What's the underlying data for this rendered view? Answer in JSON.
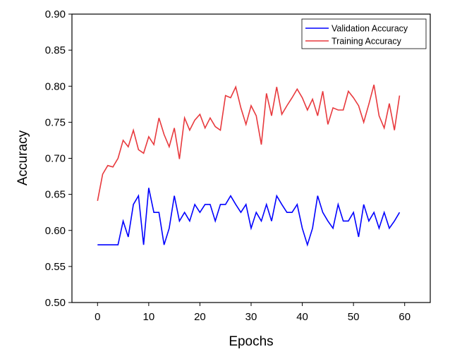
{
  "chart_data": {
    "type": "line",
    "xlabel": "Epochs",
    "ylabel": "Accuracy",
    "xlim": [
      -5,
      65
    ],
    "ylim": [
      0.5,
      0.9
    ],
    "xticks": [
      0,
      10,
      20,
      30,
      40,
      50,
      60
    ],
    "yticks": [
      0.5,
      0.55,
      0.6,
      0.65,
      0.7,
      0.75,
      0.8,
      0.85,
      0.9
    ],
    "grid": false,
    "legend": "top-right",
    "series": [
      {
        "name": "Validation Accuracy",
        "color": "#0000ff",
        "x": [
          0,
          1,
          2,
          3,
          4,
          5,
          6,
          7,
          8,
          9,
          10,
          11,
          12,
          13,
          14,
          15,
          16,
          17,
          18,
          19,
          20,
          21,
          22,
          23,
          24,
          25,
          26,
          27,
          28,
          29,
          30,
          31,
          32,
          33,
          34,
          35,
          36,
          37,
          38,
          39,
          40,
          41,
          42,
          43,
          44,
          45,
          46,
          47,
          48,
          49,
          50,
          51,
          52,
          53,
          54,
          55,
          56,
          57,
          58,
          59
        ],
        "values": [
          0.58,
          0.58,
          0.58,
          0.58,
          0.58,
          0.613,
          0.591,
          0.636,
          0.648,
          0.58,
          0.659,
          0.625,
          0.625,
          0.58,
          0.603,
          0.648,
          0.613,
          0.625,
          0.613,
          0.636,
          0.625,
          0.636,
          0.636,
          0.613,
          0.636,
          0.636,
          0.648,
          0.636,
          0.625,
          0.636,
          0.603,
          0.625,
          0.613,
          0.636,
          0.613,
          0.648,
          0.636,
          0.625,
          0.625,
          0.636,
          0.603,
          0.58,
          0.603,
          0.648,
          0.625,
          0.613,
          0.603,
          0.636,
          0.613,
          0.613,
          0.625,
          0.591,
          0.636,
          0.613,
          0.625,
          0.603,
          0.625,
          0.603,
          0.613,
          0.625
        ]
      },
      {
        "name": "Training Accuracy",
        "color": "#e8393d",
        "x": [
          0,
          1,
          2,
          3,
          4,
          5,
          6,
          7,
          8,
          9,
          10,
          11,
          12,
          13,
          14,
          15,
          16,
          17,
          18,
          19,
          20,
          21,
          22,
          23,
          24,
          25,
          26,
          27,
          28,
          29,
          30,
          31,
          32,
          33,
          34,
          35,
          36,
          37,
          38,
          39,
          40,
          41,
          42,
          43,
          44,
          45,
          46,
          47,
          48,
          49,
          50,
          51,
          52,
          53,
          54,
          55,
          56,
          57,
          58,
          59
        ],
        "values": [
          0.641,
          0.678,
          0.69,
          0.688,
          0.7,
          0.725,
          0.716,
          0.739,
          0.712,
          0.707,
          0.73,
          0.719,
          0.756,
          0.733,
          0.716,
          0.742,
          0.699,
          0.756,
          0.739,
          0.753,
          0.761,
          0.742,
          0.756,
          0.744,
          0.739,
          0.787,
          0.784,
          0.799,
          0.77,
          0.747,
          0.773,
          0.759,
          0.719,
          0.79,
          0.759,
          0.799,
          0.761,
          0.773,
          0.784,
          0.796,
          0.784,
          0.767,
          0.782,
          0.759,
          0.793,
          0.747,
          0.77,
          0.767,
          0.767,
          0.793,
          0.784,
          0.773,
          0.75,
          0.775,
          0.802,
          0.759,
          0.742,
          0.776,
          0.739,
          0.787
        ]
      }
    ]
  }
}
